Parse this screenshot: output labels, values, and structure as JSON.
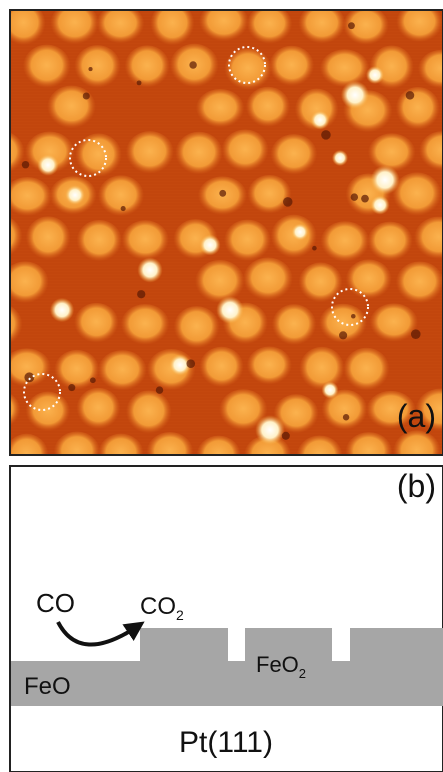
{
  "panel_a": {
    "label": "(a)"
  },
  "panel_b": {
    "label": "(b)",
    "reactant": "CO",
    "product": {
      "text": "CO",
      "subscript": "2"
    },
    "layer_left": "FeO",
    "layer_island": {
      "text": "FeO",
      "subscript": "2"
    },
    "substrate": "Pt(111)"
  }
}
